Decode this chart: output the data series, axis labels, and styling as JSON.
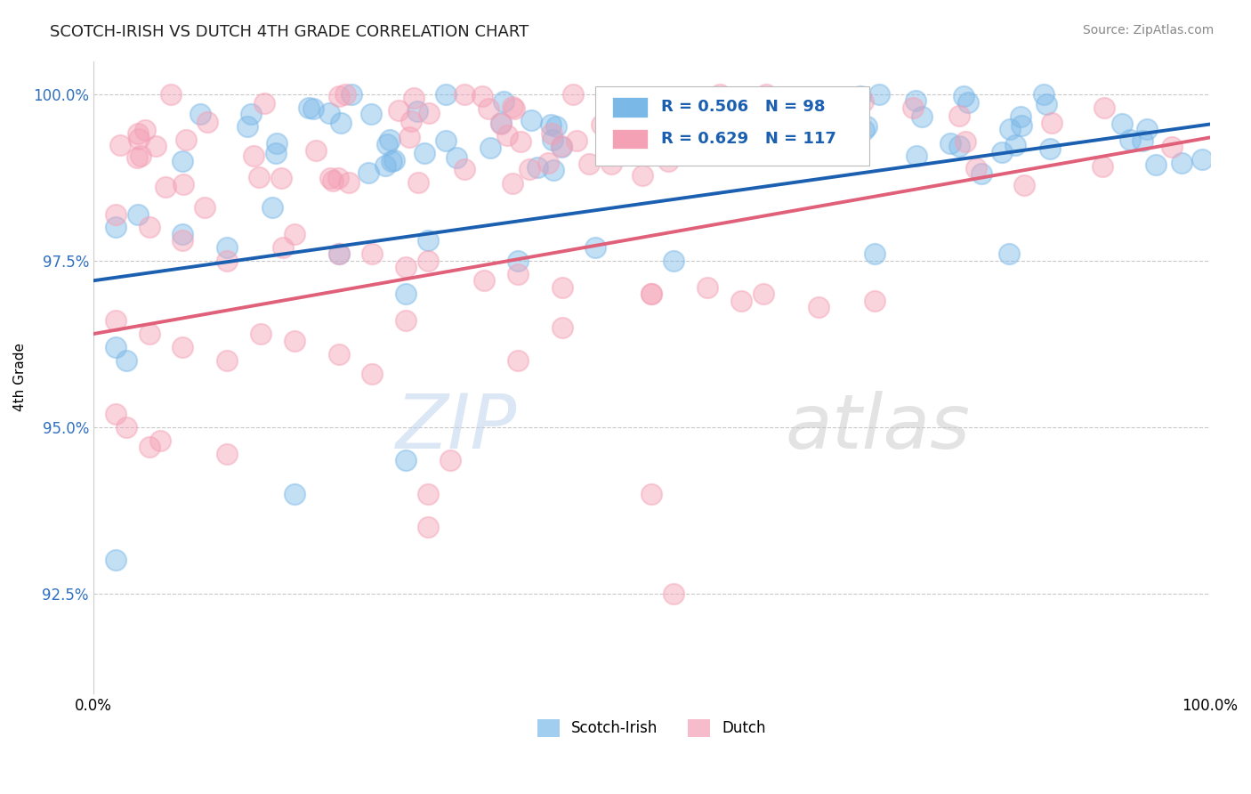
{
  "title": "SCOTCH-IRISH VS DUTCH 4TH GRADE CORRELATION CHART",
  "source_text": "Source: ZipAtlas.com",
  "ylabel": "4th Grade",
  "xlim": [
    0.0,
    1.0
  ],
  "ylim": [
    0.91,
    1.005
  ],
  "yticks": [
    0.925,
    0.95,
    0.975,
    1.0
  ],
  "ytick_labels": [
    "92.5%",
    "95.0%",
    "97.5%",
    "100.0%"
  ],
  "xticks": [
    0.0,
    0.5,
    1.0
  ],
  "xtick_labels": [
    "0.0%",
    "",
    "100.0%"
  ],
  "scotch_irish_color": "#7ab8e8",
  "dutch_color": "#f4a0b5",
  "scotch_irish_line_color": "#1a5fb0",
  "dutch_line_color": "#e0607a",
  "legend_R_scotch": "R = 0.506",
  "legend_N_scotch": "N = 98",
  "legend_R_dutch": "R = 0.629",
  "legend_N_dutch": "N = 117",
  "scotch_irish_N": 98,
  "dutch_N": 117,
  "background_color": "#ffffff",
  "grid_color": "#bbbbbb",
  "ytick_color": "#3070c0",
  "xtick_color": "#000000",
  "watermark_zip_color": "#b0c8e8",
  "watermark_atlas_color": "#c0c0c0",
  "si_line_x0": 0.0,
  "si_line_y0": 0.972,
  "si_line_x1": 1.0,
  "si_line_y1": 0.9955,
  "du_line_x0": 0.0,
  "du_line_y0": 0.964,
  "du_line_x1": 1.0,
  "du_line_y1": 0.9935
}
